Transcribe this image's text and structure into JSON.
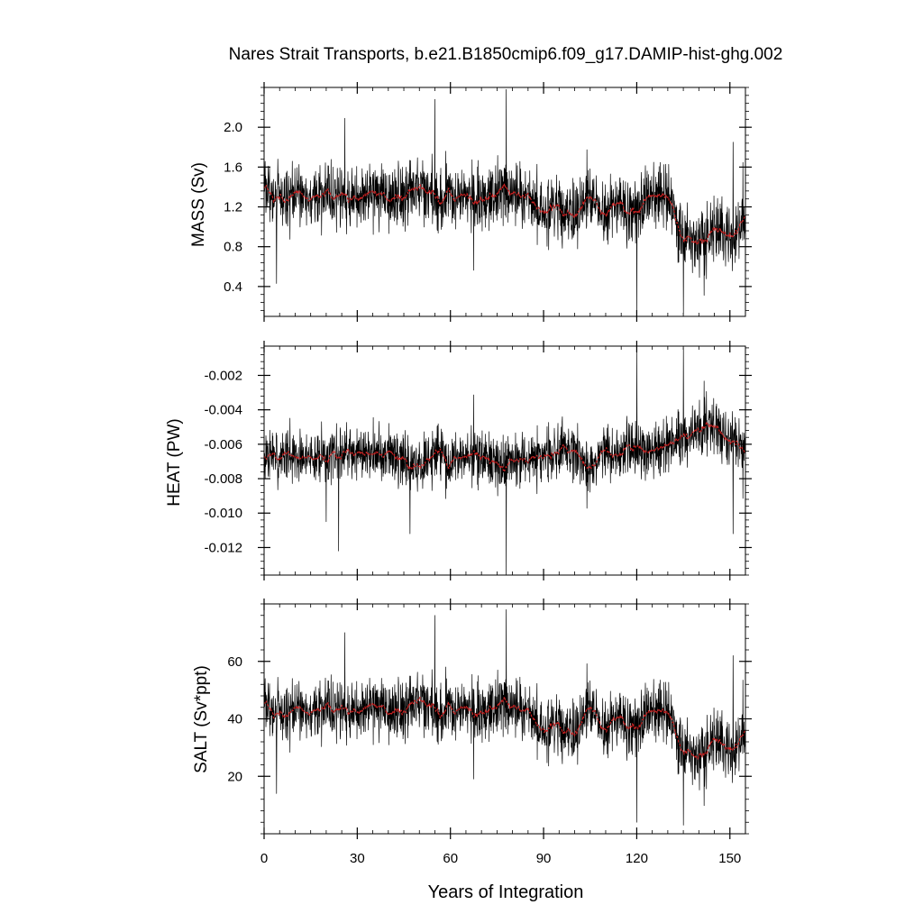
{
  "figure": {
    "title": "Nares Strait Transports, b.e21.B1850cmip6.f09_g17.DAMIP-hist-ghg.002",
    "xlabel": "Years of Integration"
  },
  "colors": {
    "raw_series": "#000000",
    "smoothed_series": "#cc2222",
    "axes": "#000000",
    "background": "#ffffff"
  },
  "chart_data": [
    {
      "type": "line",
      "panel": "mass",
      "ylabel": "MASS (Sv)",
      "xlim": [
        0,
        155
      ],
      "ylim": [
        0.1,
        2.4
      ],
      "x_ticks": [
        0,
        30,
        60,
        90,
        120,
        150
      ],
      "y_ticks": [
        0.4,
        0.8,
        1.2,
        1.6,
        2.0
      ],
      "y_tick_labels": [
        "0.4",
        "0.8",
        "1.2",
        "1.6",
        "2.0"
      ],
      "grid": false,
      "x_step": 0.0833,
      "smoothed_anchors": {
        "x": [
          0,
          5,
          10,
          15,
          20,
          25,
          30,
          35,
          40,
          45,
          50,
          55,
          60,
          65,
          70,
          75,
          80,
          85,
          90,
          95,
          100,
          105,
          110,
          115,
          120,
          125,
          130,
          135,
          140,
          145,
          150,
          155
        ],
        "y": [
          1.35,
          1.3,
          1.32,
          1.28,
          1.3,
          1.33,
          1.3,
          1.32,
          1.3,
          1.28,
          1.38,
          1.33,
          1.3,
          1.32,
          1.3,
          1.35,
          1.33,
          1.28,
          1.12,
          1.2,
          1.15,
          1.3,
          1.18,
          1.22,
          1.15,
          1.32,
          1.3,
          0.92,
          0.85,
          0.95,
          0.9,
          1.05
        ]
      },
      "variability_range": 0.55,
      "extremes": [
        {
          "x": 4,
          "y": 0.43
        },
        {
          "x": 26,
          "y": 2.09
        },
        {
          "x": 55,
          "y": 2.28
        },
        {
          "x": 78,
          "y": 2.38
        },
        {
          "x": 120,
          "y": 0.12
        },
        {
          "x": 135,
          "y": 0.12
        },
        {
          "x": 151,
          "y": 1.85
        }
      ],
      "series": [
        {
          "name": "",
          "style": "annual"
        },
        {
          "name": "",
          "style": "smoothed"
        }
      ]
    },
    {
      "type": "line",
      "panel": "heat",
      "ylabel": "HEAT (PW)",
      "xlim": [
        0,
        155
      ],
      "ylim": [
        -0.0136,
        -0.0003
      ],
      "x_ticks": [
        0,
        30,
        60,
        90,
        120,
        150
      ],
      "y_ticks": [
        -0.012,
        -0.01,
        -0.008,
        -0.006,
        -0.004,
        -0.002
      ],
      "y_tick_labels": [
        "-0.012",
        "-0.010",
        "-0.008",
        "-0.006",
        "-0.004",
        "-0.002"
      ],
      "grid": false,
      "x_step": 0.0833,
      "smoothed_anchors": {
        "x": [
          0,
          5,
          10,
          15,
          20,
          25,
          30,
          35,
          40,
          45,
          50,
          55,
          60,
          65,
          70,
          75,
          80,
          85,
          90,
          95,
          100,
          105,
          110,
          115,
          120,
          125,
          130,
          135,
          140,
          145,
          150,
          155
        ],
        "y": [
          -0.0065,
          -0.0068,
          -0.0066,
          -0.0068,
          -0.0065,
          -0.0067,
          -0.0066,
          -0.0064,
          -0.0066,
          -0.0068,
          -0.0072,
          -0.0067,
          -0.007,
          -0.0067,
          -0.0069,
          -0.0072,
          -0.0069,
          -0.0068,
          -0.0066,
          -0.0064,
          -0.0066,
          -0.0074,
          -0.0066,
          -0.0065,
          -0.0062,
          -0.0064,
          -0.006,
          -0.0058,
          -0.0052,
          -0.0048,
          -0.0058,
          -0.0062
        ]
      },
      "variability_range": 0.0027,
      "extremes": [
        {
          "x": 20,
          "y": -0.0105
        },
        {
          "x": 24,
          "y": -0.0122
        },
        {
          "x": 47,
          "y": -0.0112
        },
        {
          "x": 78,
          "y": -0.0136
        },
        {
          "x": 120,
          "y": -0.0006
        },
        {
          "x": 135,
          "y": -0.0004
        },
        {
          "x": 151,
          "y": -0.0112
        }
      ],
      "series": [
        {
          "name": "",
          "style": "annual"
        },
        {
          "name": "",
          "style": "smoothed"
        }
      ]
    },
    {
      "type": "line",
      "panel": "salt",
      "ylabel": "SALT (Sv*ppt)",
      "xlim": [
        0,
        155
      ],
      "ylim": [
        0,
        80
      ],
      "x_ticks": [
        0,
        30,
        60,
        90,
        120,
        150
      ],
      "y_ticks": [
        20,
        40,
        60
      ],
      "y_tick_labels": [
        "20",
        "40",
        "60"
      ],
      "grid": false,
      "x_step": 0.0833,
      "smoothed_anchors": {
        "x": [
          0,
          5,
          10,
          15,
          20,
          25,
          30,
          35,
          40,
          45,
          50,
          55,
          60,
          65,
          70,
          75,
          80,
          85,
          90,
          95,
          100,
          105,
          110,
          115,
          120,
          125,
          130,
          135,
          140,
          145,
          150,
          155
        ],
        "y": [
          44,
          42,
          43,
          42,
          43,
          44,
          43,
          44,
          43,
          42,
          46,
          44,
          43,
          44,
          43,
          45,
          44,
          42,
          35,
          38,
          36,
          44,
          38,
          40,
          37,
          43,
          42,
          30,
          27,
          32,
          29,
          34
        ]
      },
      "variability_range": 18,
      "extremes": [
        {
          "x": 4,
          "y": 14
        },
        {
          "x": 26,
          "y": 70
        },
        {
          "x": 55,
          "y": 76
        },
        {
          "x": 78,
          "y": 78
        },
        {
          "x": 120,
          "y": 4
        },
        {
          "x": 135,
          "y": 3
        },
        {
          "x": 151,
          "y": 62
        }
      ],
      "series": [
        {
          "name": "",
          "style": "annual"
        },
        {
          "name": "",
          "style": "smoothed"
        }
      ]
    }
  ]
}
